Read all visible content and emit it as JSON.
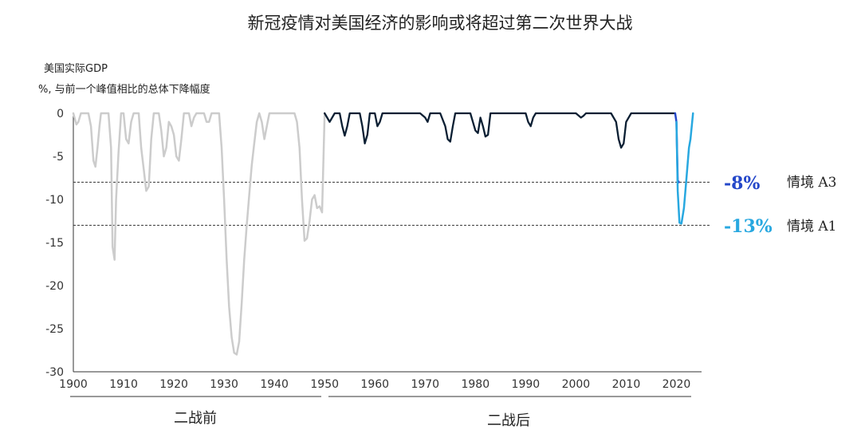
{
  "chart_data": {
    "type": "line",
    "title": "新冠疫情对美国经济的影响或将超过第二次世界大战",
    "subtitle_line1": "美国实际GDP",
    "subtitle_line2": "%,  与前一个峰值相比的总体下降幅度",
    "xlim": [
      1900,
      2025
    ],
    "ylim": [
      -30,
      0
    ],
    "y_ticks": [
      0,
      -5,
      -10,
      -15,
      -20,
      -25,
      -30
    ],
    "x_ticks": [
      1900,
      1910,
      1920,
      1930,
      1940,
      1950,
      1960,
      1970,
      1980,
      1990,
      2000,
      2010,
      2020
    ],
    "grid": false,
    "era_labels": {
      "pre_war": "二战前",
      "post_war": "二战后"
    },
    "colors": {
      "pre_war": "#cccccc",
      "post_war": "#0b1f33",
      "scenario_a3": "#2447c9",
      "scenario_a1": "#28a8e0",
      "reference_line": "#333333"
    },
    "reference_lines": [
      {
        "y": -8,
        "value_label": "-8%",
        "scenario": "情境 A3"
      },
      {
        "y": -13,
        "value_label": "-13%",
        "scenario": "情境 A1"
      }
    ],
    "series": [
      {
        "era": "pre_war",
        "x": [
          1900,
          1900.6,
          1901,
          1901.5,
          1902,
          1902.5,
          1903,
          1903.5,
          1904,
          1904.4,
          1904.8,
          1905.2,
          1905.5,
          1906,
          1907,
          1907.5,
          1907.8,
          1908.2,
          1908.5,
          1909,
          1909.5,
          1910,
          1910.5,
          1911,
          1911.5,
          1912,
          1913,
          1913.5,
          1914,
          1914.5,
          1915,
          1915.5,
          1916,
          1917,
          1917.5,
          1918,
          1918.5,
          1919,
          1919.5,
          1920,
          1920.5,
          1921,
          1921.5,
          1922,
          1923,
          1923.5,
          1924,
          1924.5,
          1925,
          1926,
          1926.5,
          1927,
          1927.5,
          1928,
          1929,
          1929.5,
          1930,
          1930.5,
          1931,
          1931.5,
          1932,
          1932.5,
          1933,
          1933.5,
          1934,
          1934.5,
          1935,
          1935.5,
          1936,
          1936.5,
          1937,
          1937.5,
          1938,
          1938.5,
          1939,
          1939.5,
          1940,
          1940.5,
          1941,
          1942,
          1943,
          1944,
          1944.5,
          1945,
          1945.5,
          1946,
          1946.5,
          1947,
          1947.5,
          1948,
          1948.5,
          1949,
          1949.5,
          1950
        ],
        "y": [
          0,
          -1.3,
          -1.0,
          0,
          0,
          0,
          0,
          -1.5,
          -5.5,
          -6.2,
          -4.0,
          -1.5,
          0,
          0,
          0,
          -4.0,
          -15.5,
          -17.0,
          -10.0,
          -4.5,
          0,
          0,
          -3.0,
          -3.5,
          -1.0,
          0,
          0,
          -4.0,
          -6.5,
          -9.0,
          -8.5,
          -3.0,
          0,
          0,
          -2.0,
          -5.0,
          -4.0,
          -1.0,
          -1.5,
          -2.5,
          -5.0,
          -5.5,
          -3.0,
          0,
          0,
          -1.5,
          -0.5,
          0,
          0,
          0,
          -1.0,
          -1.0,
          0,
          0,
          0,
          -4.0,
          -10.0,
          -17.0,
          -22.5,
          -26.0,
          -27.8,
          -28.0,
          -26.5,
          -22.0,
          -17.0,
          -13.0,
          -9.5,
          -6.0,
          -3.5,
          -1.0,
          0,
          -1.0,
          -3.0,
          -1.5,
          0,
          0,
          0,
          0,
          0,
          0,
          0,
          0,
          -1.0,
          -4.0,
          -10.0,
          -14.8,
          -14.5,
          -12.5,
          -10.0,
          -9.5,
          -11.0,
          -10.8,
          -11.5,
          0
        ]
      },
      {
        "era": "post_war",
        "x": [
          1950,
          1951,
          1952,
          1953,
          1953.5,
          1954,
          1954.5,
          1955,
          1956,
          1957,
          1957.5,
          1958,
          1958.5,
          1959,
          1960,
          1960.5,
          1961,
          1961.5,
          1962,
          1963,
          1964,
          1965,
          1966,
          1967,
          1968,
          1969,
          1970,
          1970.5,
          1971,
          1972,
          1973,
          1974,
          1974.5,
          1975,
          1975.5,
          1976,
          1977,
          1978,
          1979,
          1980,
          1980.5,
          1981,
          1981.5,
          1982,
          1982.5,
          1983,
          1984,
          1985,
          1986,
          1987,
          1988,
          1989,
          1990,
          1990.5,
          1991,
          1991.5,
          1992,
          1993,
          1994,
          1995,
          1996,
          1997,
          1998,
          1999,
          2000,
          2001,
          2001.5,
          2002,
          2003,
          2004,
          2005,
          2006,
          2007,
          2008,
          2008.5,
          2009,
          2009.5,
          2010,
          2011,
          2012,
          2013,
          2014,
          2015,
          2016,
          2017,
          2018,
          2019,
          2019.75
        ],
        "y": [
          0,
          -1.0,
          0,
          0,
          -1.5,
          -2.6,
          -1.5,
          0,
          0,
          0,
          -1.5,
          -3.5,
          -2.5,
          0,
          0,
          -1.5,
          -1.0,
          0,
          0,
          0,
          0,
          0,
          0,
          0,
          0,
          0,
          -0.5,
          -1.0,
          0,
          0,
          0,
          -1.5,
          -3.0,
          -3.3,
          -1.5,
          0,
          0,
          0,
          0,
          -2.0,
          -2.3,
          -0.5,
          -1.5,
          -2.7,
          -2.5,
          0,
          0,
          0,
          0,
          0,
          0,
          0,
          0,
          -1.0,
          -1.5,
          -0.5,
          0,
          0,
          0,
          0,
          0,
          0,
          0,
          0,
          0,
          -0.5,
          -0.3,
          0,
          0,
          0,
          0,
          0,
          0,
          -1.0,
          -3.0,
          -4.0,
          -3.5,
          -1.0,
          0,
          0,
          0,
          0,
          0,
          0,
          0,
          0,
          0,
          0
        ]
      },
      {
        "era": "scenario_a3",
        "x": [
          2019.75,
          2020.0,
          2020.25,
          2020.5
        ],
        "y": [
          0,
          -1.0,
          -7.8,
          -8.0
        ]
      },
      {
        "era": "scenario_a1",
        "x": [
          2020.0,
          2020.25,
          2020.6,
          2021.0,
          2021.5,
          2022.0,
          2022.5,
          2022.8,
          2023.3
        ],
        "y": [
          -1.0,
          -9.0,
          -12.7,
          -12.8,
          -11.0,
          -7.5,
          -4.0,
          -3.0,
          0
        ]
      }
    ]
  }
}
